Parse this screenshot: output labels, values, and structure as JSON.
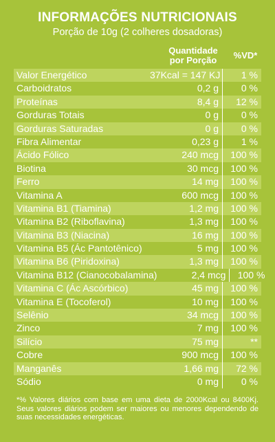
{
  "title": "INFORMAÇÕES NUTRICIONAIS",
  "subtitle": "Porção de 10g (2 colheres dosadoras)",
  "header": {
    "quantity_line1": "Quantidade",
    "quantity_line2": "por Porção",
    "vd": "%VD*"
  },
  "rows": [
    {
      "name": "Valor Energético",
      "qty": "37Kcal = 147 KJ",
      "vd": "1 %"
    },
    {
      "name": "Carboidratos",
      "qty": "0,2 g",
      "vd": "0 %"
    },
    {
      "name": "Proteínas",
      "qty": "8,4 g",
      "vd": "12 %"
    },
    {
      "name": "Gorduras Totais",
      "qty": "0 g",
      "vd": "0 %"
    },
    {
      "name": "Gorduras Saturadas",
      "qty": "0 g",
      "vd": "0 %"
    },
    {
      "name": "Fibra Alimentar",
      "qty": "0,23 g",
      "vd": "1 %"
    },
    {
      "name": "Ácido Fólico",
      "qty": "240 mcg",
      "vd": "100 %"
    },
    {
      "name": "Biotina",
      "qty": "30 mcg",
      "vd": "100 %"
    },
    {
      "name": "Ferro",
      "qty": "14 mg",
      "vd": "100 %"
    },
    {
      "name": "Vitamina A",
      "qty": "600 mcg",
      "vd": "100 %"
    },
    {
      "name": "Vitamina B1 (Tiamina)",
      "qty": "1,2 mg",
      "vd": "100 %"
    },
    {
      "name": "Vitamina B2 (Riboflavina)",
      "qty": "1,3 mg",
      "vd": "100 %"
    },
    {
      "name": "Vitamina B3 (Niacina)",
      "qty": "16 mg",
      "vd": "100 %"
    },
    {
      "name": "Vitamina B5 (Ác Pantotênico)",
      "qty": "5 mg",
      "vd": "100 %"
    },
    {
      "name": "Vitamina B6 (Piridoxina)",
      "qty": "1,3 mg",
      "vd": "100 %"
    },
    {
      "name": "Vitamina B12 (Cianocobalamina)",
      "qty": "2,4 mcg",
      "vd": "100 %"
    },
    {
      "name": "Vitamina C (Ác Ascórbico)",
      "qty": "45 mg",
      "vd": "100 %"
    },
    {
      "name": "Vitamina E (Tocoferol)",
      "qty": "10 mg",
      "vd": "100 %"
    },
    {
      "name": "Selênio",
      "qty": "34 mcg",
      "vd": "100 %"
    },
    {
      "name": "Zinco",
      "qty": "7 mg",
      "vd": "100 %"
    },
    {
      "name": "Silício",
      "qty": "75 mg",
      "vd": "**"
    },
    {
      "name": "Cobre",
      "qty": "900 mcg",
      "vd": "100 %"
    },
    {
      "name": "Manganês",
      "qty": "1,66 mg",
      "vd": "72 %"
    },
    {
      "name": "Sódio",
      "qty": "0 mg",
      "vd": "0 %"
    }
  ],
  "footnote": "*% Valores diários com base em uma dieta de 2000Kcal ou 8400Kj. Seus valores diários podem ser maiores ou menores dependendo de suas necessidades energéticas.",
  "colors": {
    "background": "#a7c33a",
    "row_shade": "#bed45e",
    "text": "#ffffff"
  }
}
